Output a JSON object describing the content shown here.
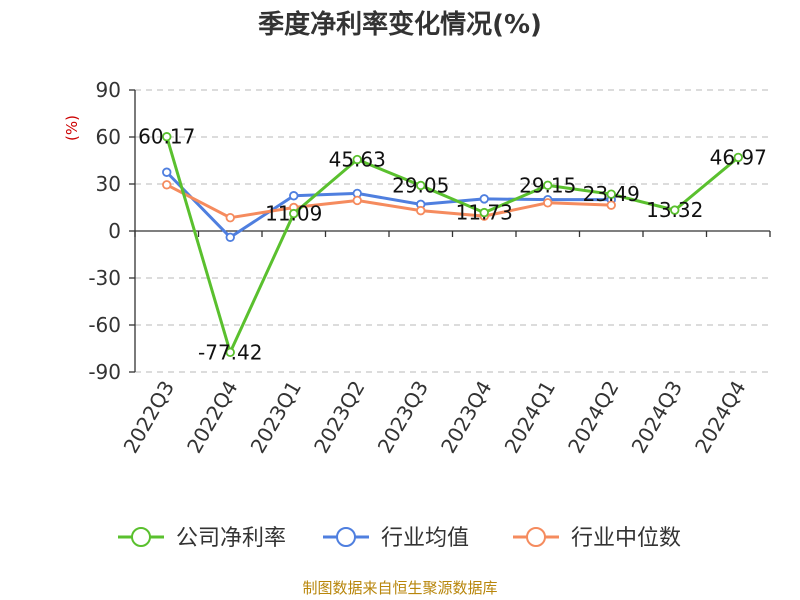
{
  "chart_data": {
    "type": "line",
    "title": "季度净利率变化情况(%)",
    "ylabel": "(%)",
    "categories": [
      "2022Q3",
      "2022Q4",
      "2023Q1",
      "2023Q2",
      "2023Q3",
      "2023Q4",
      "2024Q1",
      "2024Q2",
      "2024Q3",
      "2024Q4"
    ],
    "yticks": [
      90,
      60,
      30,
      0,
      -30,
      -60,
      -90
    ],
    "ylim": [
      -90,
      90
    ],
    "grid": true,
    "legend_position": "bottom",
    "series": [
      {
        "name": "公司净利率",
        "color": "#5ac02e",
        "values": [
          60.17,
          -77.42,
          11.09,
          45.63,
          29.05,
          11.73,
          29.15,
          23.49,
          13.32,
          46.97
        ],
        "labels": [
          "60.17",
          "-77.42",
          "11.09",
          "45.63",
          "29.05",
          "11.73",
          "29.15",
          "23.49",
          "13.32",
          "46.97"
        ]
      },
      {
        "name": "行业均值",
        "color": "#4f7fdf",
        "values": [
          37.5,
          -4.0,
          22.5,
          24.0,
          17.0,
          20.5,
          20.0,
          20.0,
          null,
          null
        ]
      },
      {
        "name": "行业中位数",
        "color": "#f58b5e",
        "values": [
          29.5,
          8.5,
          15.0,
          19.5,
          13.0,
          9.5,
          18.0,
          16.5,
          null,
          null
        ]
      }
    ]
  },
  "source": "制图数据来自恒生聚源数据库"
}
